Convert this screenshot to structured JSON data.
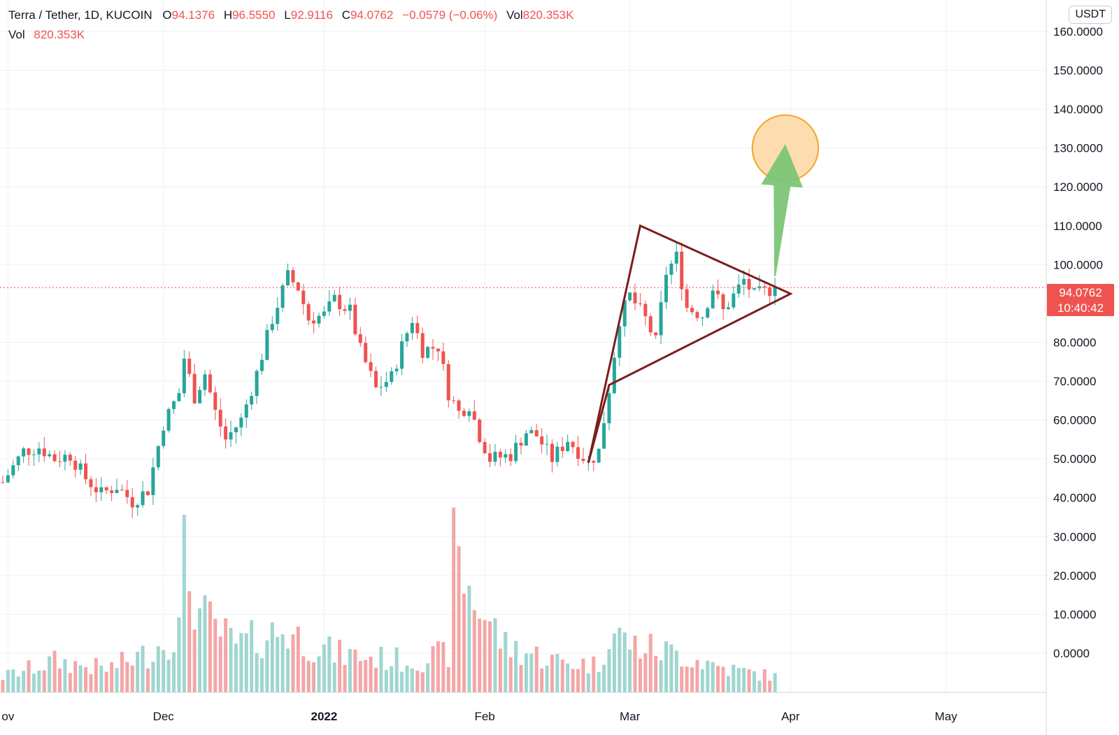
{
  "legend": {
    "symbol": "Terra / Tether, 1D, KUCOIN",
    "open_label": "O",
    "open": "94.1376",
    "high_label": "H",
    "high": "96.5550",
    "low_label": "L",
    "low": "92.9116",
    "close_label": "C",
    "close": "94.0762",
    "change": "−0.0579 (−0.06%)",
    "vol_label": "Vol",
    "vol": "820.353K"
  },
  "volume_legend": {
    "label": "Vol",
    "value": "820.353K"
  },
  "currency": "USDT",
  "last_price": {
    "price": "94.0762",
    "countdown": "10:40:42"
  },
  "colors": {
    "up": "#26a69a",
    "down": "#ef5350",
    "vol_up": "#9fd6d0",
    "vol_down": "#f4a6a6",
    "pattern": "#7b1e1e",
    "arrow": "#7cc576",
    "target_fill": "#fdd9a8",
    "target_stroke": "#f39c12",
    "grid": "#eef0f3"
  },
  "chart_data": {
    "type": "candlestick",
    "interval": "1D",
    "y_axis": {
      "position": "right",
      "range": [
        -6,
        162
      ],
      "ticks": [
        "160.0000",
        "150.0000",
        "140.0000",
        "130.0000",
        "120.0000",
        "110.0000",
        "100.0000",
        "80.0000",
        "70.0000",
        "60.0000",
        "50.0000",
        "40.0000",
        "30.0000",
        "20.0000",
        "10.0000",
        "0.0000"
      ]
    },
    "x_axis": {
      "start_date": "2021-10-31",
      "end_date": "2022-05-07",
      "ticks": [
        {
          "label": "ov",
          "date": "2021-11-01"
        },
        {
          "label": "Dec",
          "date": "2021-12-01"
        },
        {
          "label": "2022",
          "date": "2022-01-01",
          "bold": true
        },
        {
          "label": "Feb",
          "date": "2022-02-01"
        },
        {
          "label": "Mar",
          "date": "2022-03-01"
        },
        {
          "label": "Apr",
          "date": "2022-04-01"
        },
        {
          "label": "May",
          "date": "2022-05-01"
        }
      ]
    },
    "price_path": [
      [
        "2021-10-31",
        44
      ],
      [
        "2021-11-04",
        52
      ],
      [
        "2021-11-07",
        53
      ],
      [
        "2021-11-10",
        50
      ],
      [
        "2021-11-13",
        51
      ],
      [
        "2021-11-16",
        45
      ],
      [
        "2021-11-19",
        41
      ],
      [
        "2021-11-22",
        43
      ],
      [
        "2021-11-25",
        39
      ],
      [
        "2021-11-28",
        42
      ],
      [
        "2021-12-01",
        59
      ],
      [
        "2021-12-04",
        67
      ],
      [
        "2021-12-05",
        76
      ],
      [
        "2021-12-07",
        66
      ],
      [
        "2021-12-09",
        72
      ],
      [
        "2021-12-11",
        62
      ],
      [
        "2021-12-13",
        55
      ],
      [
        "2021-12-16",
        60
      ],
      [
        "2021-12-19",
        72
      ],
      [
        "2021-12-22",
        86
      ],
      [
        "2021-12-25",
        97
      ],
      [
        "2021-12-27",
        94
      ],
      [
        "2021-12-29",
        86
      ],
      [
        "2022-01-01",
        87
      ],
      [
        "2022-01-03",
        91
      ],
      [
        "2022-01-06",
        88
      ],
      [
        "2022-01-08",
        78
      ],
      [
        "2022-01-11",
        68
      ],
      [
        "2022-01-14",
        71
      ],
      [
        "2022-01-16",
        79
      ],
      [
        "2022-01-18",
        86
      ],
      [
        "2022-01-20",
        78
      ],
      [
        "2022-01-23",
        79
      ],
      [
        "2022-01-25",
        67
      ],
      [
        "2022-01-27",
        62
      ],
      [
        "2022-01-29",
        64
      ],
      [
        "2022-01-31",
        56
      ],
      [
        "2022-02-02",
        50
      ],
      [
        "2022-02-06",
        51
      ],
      [
        "2022-02-09",
        57
      ],
      [
        "2022-02-11",
        56
      ],
      [
        "2022-02-14",
        50
      ],
      [
        "2022-02-17",
        55
      ],
      [
        "2022-02-19",
        52
      ],
      [
        "2022-02-21",
        49
      ],
      [
        "2022-02-23",
        52
      ],
      [
        "2022-02-25",
        68
      ],
      [
        "2022-02-27",
        86
      ],
      [
        "2022-03-01",
        92
      ],
      [
        "2022-03-04",
        86
      ],
      [
        "2022-03-06",
        80
      ],
      [
        "2022-03-08",
        98
      ],
      [
        "2022-03-10",
        102
      ],
      [
        "2022-03-12",
        89
      ],
      [
        "2022-03-15",
        87
      ],
      [
        "2022-03-17",
        94
      ],
      [
        "2022-03-19",
        88
      ],
      [
        "2022-03-21",
        92
      ],
      [
        "2022-03-23",
        96
      ],
      [
        "2022-03-25",
        92
      ],
      [
        "2022-03-27",
        93
      ],
      [
        "2022-03-29",
        94.08
      ]
    ],
    "volume_path": [
      [
        "2021-10-31",
        4
      ],
      [
        "2021-11-10",
        8
      ],
      [
        "2021-11-20",
        6
      ],
      [
        "2021-11-28",
        10
      ],
      [
        "2021-12-04",
        16
      ],
      [
        "2021-12-05",
        34
      ],
      [
        "2021-12-08",
        20
      ],
      [
        "2021-12-15",
        12
      ],
      [
        "2021-12-24",
        16
      ],
      [
        "2022-01-03",
        10
      ],
      [
        "2022-01-10",
        9
      ],
      [
        "2022-01-18",
        8
      ],
      [
        "2022-01-25",
        10
      ],
      [
        "2022-01-26",
        35
      ],
      [
        "2022-01-30",
        24
      ],
      [
        "2022-02-05",
        12
      ],
      [
        "2022-02-15",
        8
      ],
      [
        "2022-02-23",
        7
      ],
      [
        "2022-02-25",
        16
      ],
      [
        "2022-03-02",
        12
      ],
      [
        "2022-03-10",
        10
      ],
      [
        "2022-03-20",
        6
      ],
      [
        "2022-03-29",
        4
      ]
    ],
    "annotations": {
      "symmetrical_triangle": [
        [
          "2022-02-21",
          49
        ],
        [
          "2022-03-03",
          110
        ],
        [
          "2022-04-01",
          92.5
        ],
        [
          "2022-02-25",
          69
        ]
      ],
      "arrow": {
        "from": [
          "2022-03-29",
          97
        ],
        "to": [
          "2022-03-31",
          131
        ]
      },
      "target_circle": {
        "center": [
          "2022-03-31",
          130
        ],
        "radius_price": 8.5
      },
      "last_price_line": 94.0762
    }
  }
}
